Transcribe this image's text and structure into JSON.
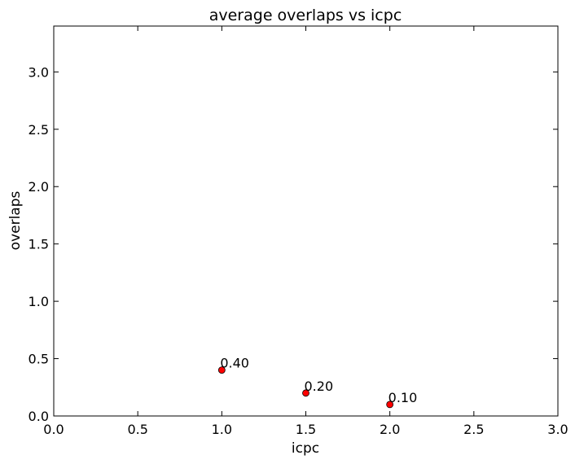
{
  "chart_data": {
    "type": "scatter",
    "title": "average overlaps vs icpc",
    "xlabel": "icpc",
    "ylabel": "overlaps",
    "xlim": [
      0.0,
      3.0
    ],
    "ylim": [
      0.0,
      3.4
    ],
    "xticks": [
      "0.0",
      "0.5",
      "1.0",
      "1.5",
      "2.0",
      "2.5",
      "3.0"
    ],
    "yticks": [
      "0.0",
      "0.5",
      "1.0",
      "1.5",
      "2.0",
      "2.5",
      "3.0"
    ],
    "grid": false,
    "marker_color": "#ff0000",
    "points": [
      {
        "x": 1.0,
        "y": 0.4,
        "label": "0.40"
      },
      {
        "x": 1.5,
        "y": 0.2,
        "label": "0.20"
      },
      {
        "x": 2.0,
        "y": 0.1,
        "label": "0.10"
      }
    ]
  }
}
